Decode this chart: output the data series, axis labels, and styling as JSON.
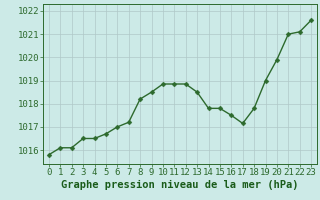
{
  "x": [
    0,
    1,
    2,
    3,
    4,
    5,
    6,
    7,
    8,
    9,
    10,
    11,
    12,
    13,
    14,
    15,
    16,
    17,
    18,
    19,
    20,
    21,
    22,
    23
  ],
  "y": [
    1015.8,
    1016.1,
    1016.1,
    1016.5,
    1016.5,
    1016.7,
    1017.0,
    1017.2,
    1018.2,
    1018.5,
    1018.85,
    1018.85,
    1018.85,
    1018.5,
    1017.8,
    1017.8,
    1017.5,
    1017.15,
    1017.8,
    1019.0,
    1019.9,
    1021.0,
    1021.1,
    1021.6
  ],
  "line_color": "#2d6a2d",
  "marker": "D",
  "marker_size": 2.5,
  "linewidth": 1.0,
  "bg_color": "#cceae7",
  "grid_color": "#b0c8c8",
  "xlabel": "Graphe pression niveau de la mer (hPa)",
  "xlabel_color": "#1a5c1a",
  "xlabel_fontsize": 7.5,
  "tick_label_color": "#1a5c1a",
  "tick_fontsize": 6.5,
  "ylim": [
    1015.4,
    1022.3
  ],
  "yticks": [
    1016,
    1017,
    1018,
    1019,
    1020,
    1021,
    1022
  ],
  "xlim": [
    -0.5,
    23.5
  ],
  "axis_color": "#2d6a2d",
  "grid_alpha": 1.0,
  "grid_linewidth": 0.5
}
